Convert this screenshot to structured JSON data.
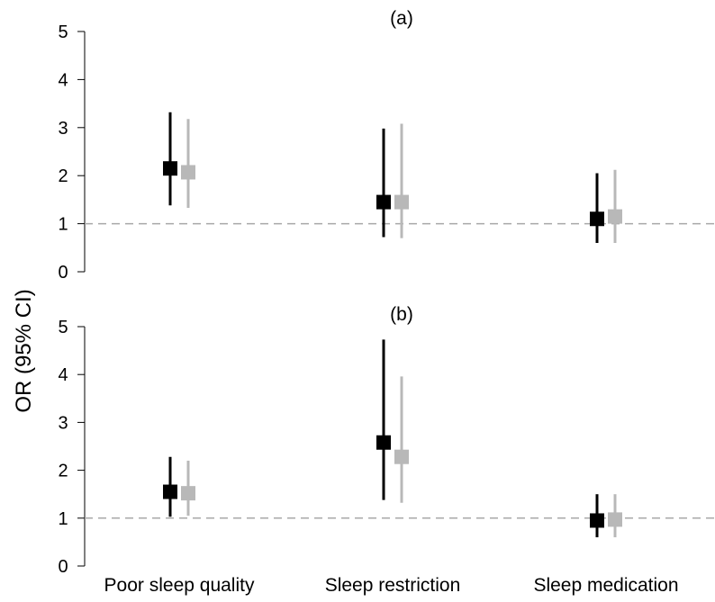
{
  "chart_data": {
    "type": "forest",
    "ylabel": "OR (95% CI)",
    "categories": [
      "Poor sleep quality",
      "Sleep restriction",
      "Sleep medication"
    ],
    "ylim": [
      0,
      5
    ],
    "yticks": [
      "0",
      "1",
      "2",
      "3",
      "4",
      "5"
    ],
    "reference_line": 1,
    "series_colors": [
      "#000000",
      "#b8b8b8"
    ],
    "panels": [
      {
        "label": "(a)",
        "series": [
          {
            "estimates": [
              2.15,
              1.45,
              1.1
            ],
            "lower": [
              1.38,
              0.72,
              0.6
            ],
            "upper": [
              3.32,
              2.98,
              2.05
            ]
          },
          {
            "estimates": [
              2.07,
              1.45,
              1.15
            ],
            "lower": [
              1.33,
              0.7,
              0.6
            ],
            "upper": [
              3.18,
              3.08,
              2.12
            ]
          }
        ]
      },
      {
        "label": "(b)",
        "series": [
          {
            "estimates": [
              1.55,
              2.58,
              0.95
            ],
            "lower": [
              1.03,
              1.38,
              0.6
            ],
            "upper": [
              2.28,
              4.73,
              1.5
            ]
          },
          {
            "estimates": [
              1.52,
              2.28,
              0.97
            ],
            "lower": [
              1.05,
              1.32,
              0.6
            ],
            "upper": [
              2.2,
              3.96,
              1.5
            ]
          }
        ]
      }
    ]
  }
}
